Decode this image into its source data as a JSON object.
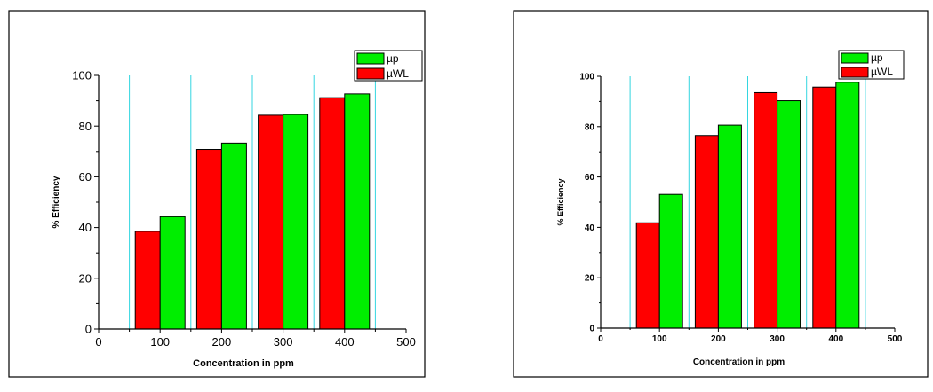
{
  "chart_data": [
    {
      "type": "bar",
      "xlabel": "Concentration in ppm",
      "ylabel": "% Efficiency",
      "xlim": [
        0,
        500
      ],
      "ylim": [
        0,
        100
      ],
      "xticks": [
        0,
        100,
        200,
        300,
        400,
        500
      ],
      "yticks": [
        0,
        20,
        40,
        60,
        80,
        100
      ],
      "categories": [
        100,
        200,
        300,
        400
      ],
      "grid": "vertical",
      "legend": "top-right",
      "series": [
        {
          "name": "µWL",
          "color": "#ff0000",
          "values": [
            38.5,
            70.8,
            84.3,
            91.2
          ]
        },
        {
          "name": "µp",
          "color": "#00ee00",
          "values": [
            44.3,
            73.3,
            84.6,
            92.7
          ]
        }
      ]
    },
    {
      "type": "bar",
      "xlabel": "Concentration in ppm",
      "ylabel": "% Efficiency",
      "xlim": [
        0,
        500
      ],
      "ylim": [
        0,
        100
      ],
      "xticks": [
        0,
        100,
        200,
        300,
        400,
        500
      ],
      "yticks": [
        0,
        20,
        40,
        60,
        80,
        100
      ],
      "categories": [
        100,
        200,
        300,
        400
      ],
      "grid": "vertical",
      "legend": "top-right",
      "series": [
        {
          "name": "µWL",
          "color": "#ff0000",
          "values": [
            41.8,
            76.5,
            93.5,
            95.7
          ]
        },
        {
          "name": "µp",
          "color": "#00ee00",
          "values": [
            53.1,
            80.6,
            90.3,
            97.6
          ]
        }
      ]
    }
  ]
}
